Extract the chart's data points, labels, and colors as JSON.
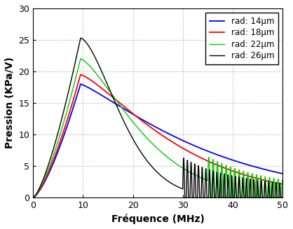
{
  "title": "",
  "xlabel": "Fréquence (MHz)",
  "ylabel": "Pression (KPa/V)",
  "xlim": [
    0,
    50
  ],
  "ylim": [
    0,
    30
  ],
  "xticks": [
    0,
    10,
    20,
    30,
    40,
    50
  ],
  "yticks": [
    0,
    5,
    10,
    15,
    20,
    25,
    30
  ],
  "grid_color": "#aaaaaa",
  "background_color": "#ffffff",
  "legend_entries": [
    {
      "label": "rad: 14μm",
      "color": "#0000ff"
    },
    {
      "label": "rad: 18μm",
      "color": "#ff0000"
    },
    {
      "label": "rad: 22μm",
      "color": "#00cc00"
    },
    {
      "label": "rad: 26μm",
      "color": "#000000"
    }
  ]
}
